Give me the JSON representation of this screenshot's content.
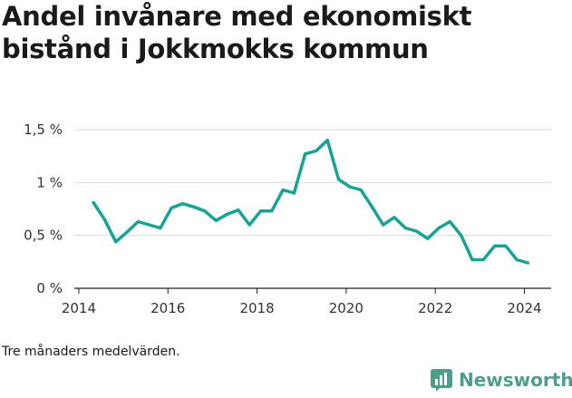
{
  "title": "Andel invånare med ekonomiskt bistånd i Jokkmokks kommun",
  "caption": "Tre månaders medelvärden.",
  "brand": {
    "name": "Newsworthy",
    "icon": "newsworthy-logo-icon"
  },
  "colors": {
    "line": "#17a396",
    "grid": "#d9d9d9",
    "axis": "#222222",
    "brand": "#4d9e8f"
  },
  "chart_data": {
    "type": "line",
    "title": "Andel invånare med ekonomiskt bistånd i Jokkmokks kommun",
    "xlabel": "",
    "ylabel": "",
    "xlim": [
      2013.9,
      2024.6
    ],
    "ylim": [
      0,
      1.5
    ],
    "grid": true,
    "x_ticks": [
      {
        "value": 2014,
        "label": "2014"
      },
      {
        "value": 2016,
        "label": "2016"
      },
      {
        "value": 2018,
        "label": "2018"
      },
      {
        "value": 2020,
        "label": "2020"
      },
      {
        "value": 2022,
        "label": "2022"
      },
      {
        "value": 2024,
        "label": "2024"
      }
    ],
    "y_ticks": [
      {
        "value": 0,
        "label": "0 %"
      },
      {
        "value": 0.5,
        "label": "0,5 %"
      },
      {
        "value": 1,
        "label": "1 %"
      },
      {
        "value": 1.5,
        "label": "1,5 %"
      }
    ],
    "series": [
      {
        "x": [
          2014.33,
          2014.58,
          2014.83,
          2015.08,
          2015.33,
          2015.58,
          2015.83,
          2016.08,
          2016.33,
          2016.58,
          2016.83,
          2017.08,
          2017.33,
          2017.58,
          2017.83,
          2018.08,
          2018.33,
          2018.58,
          2018.83,
          2019.08,
          2019.33,
          2019.58,
          2019.83,
          2020.08,
          2020.33,
          2020.58,
          2020.83,
          2021.08,
          2021.33,
          2021.58,
          2021.83,
          2022.08,
          2022.33,
          2022.58,
          2022.83,
          2023.08,
          2023.33,
          2023.58,
          2023.83,
          2024.08
        ],
        "values": [
          0.81,
          0.65,
          0.44,
          0.53,
          0.63,
          0.6,
          0.57,
          0.76,
          0.8,
          0.77,
          0.73,
          0.64,
          0.7,
          0.74,
          0.6,
          0.73,
          0.73,
          0.93,
          0.9,
          1.27,
          1.3,
          1.4,
          1.03,
          0.96,
          0.93,
          0.77,
          0.6,
          0.67,
          0.57,
          0.54,
          0.47,
          0.57,
          0.63,
          0.5,
          0.27,
          0.27,
          0.4,
          0.4,
          0.27,
          0.24
        ]
      }
    ]
  }
}
